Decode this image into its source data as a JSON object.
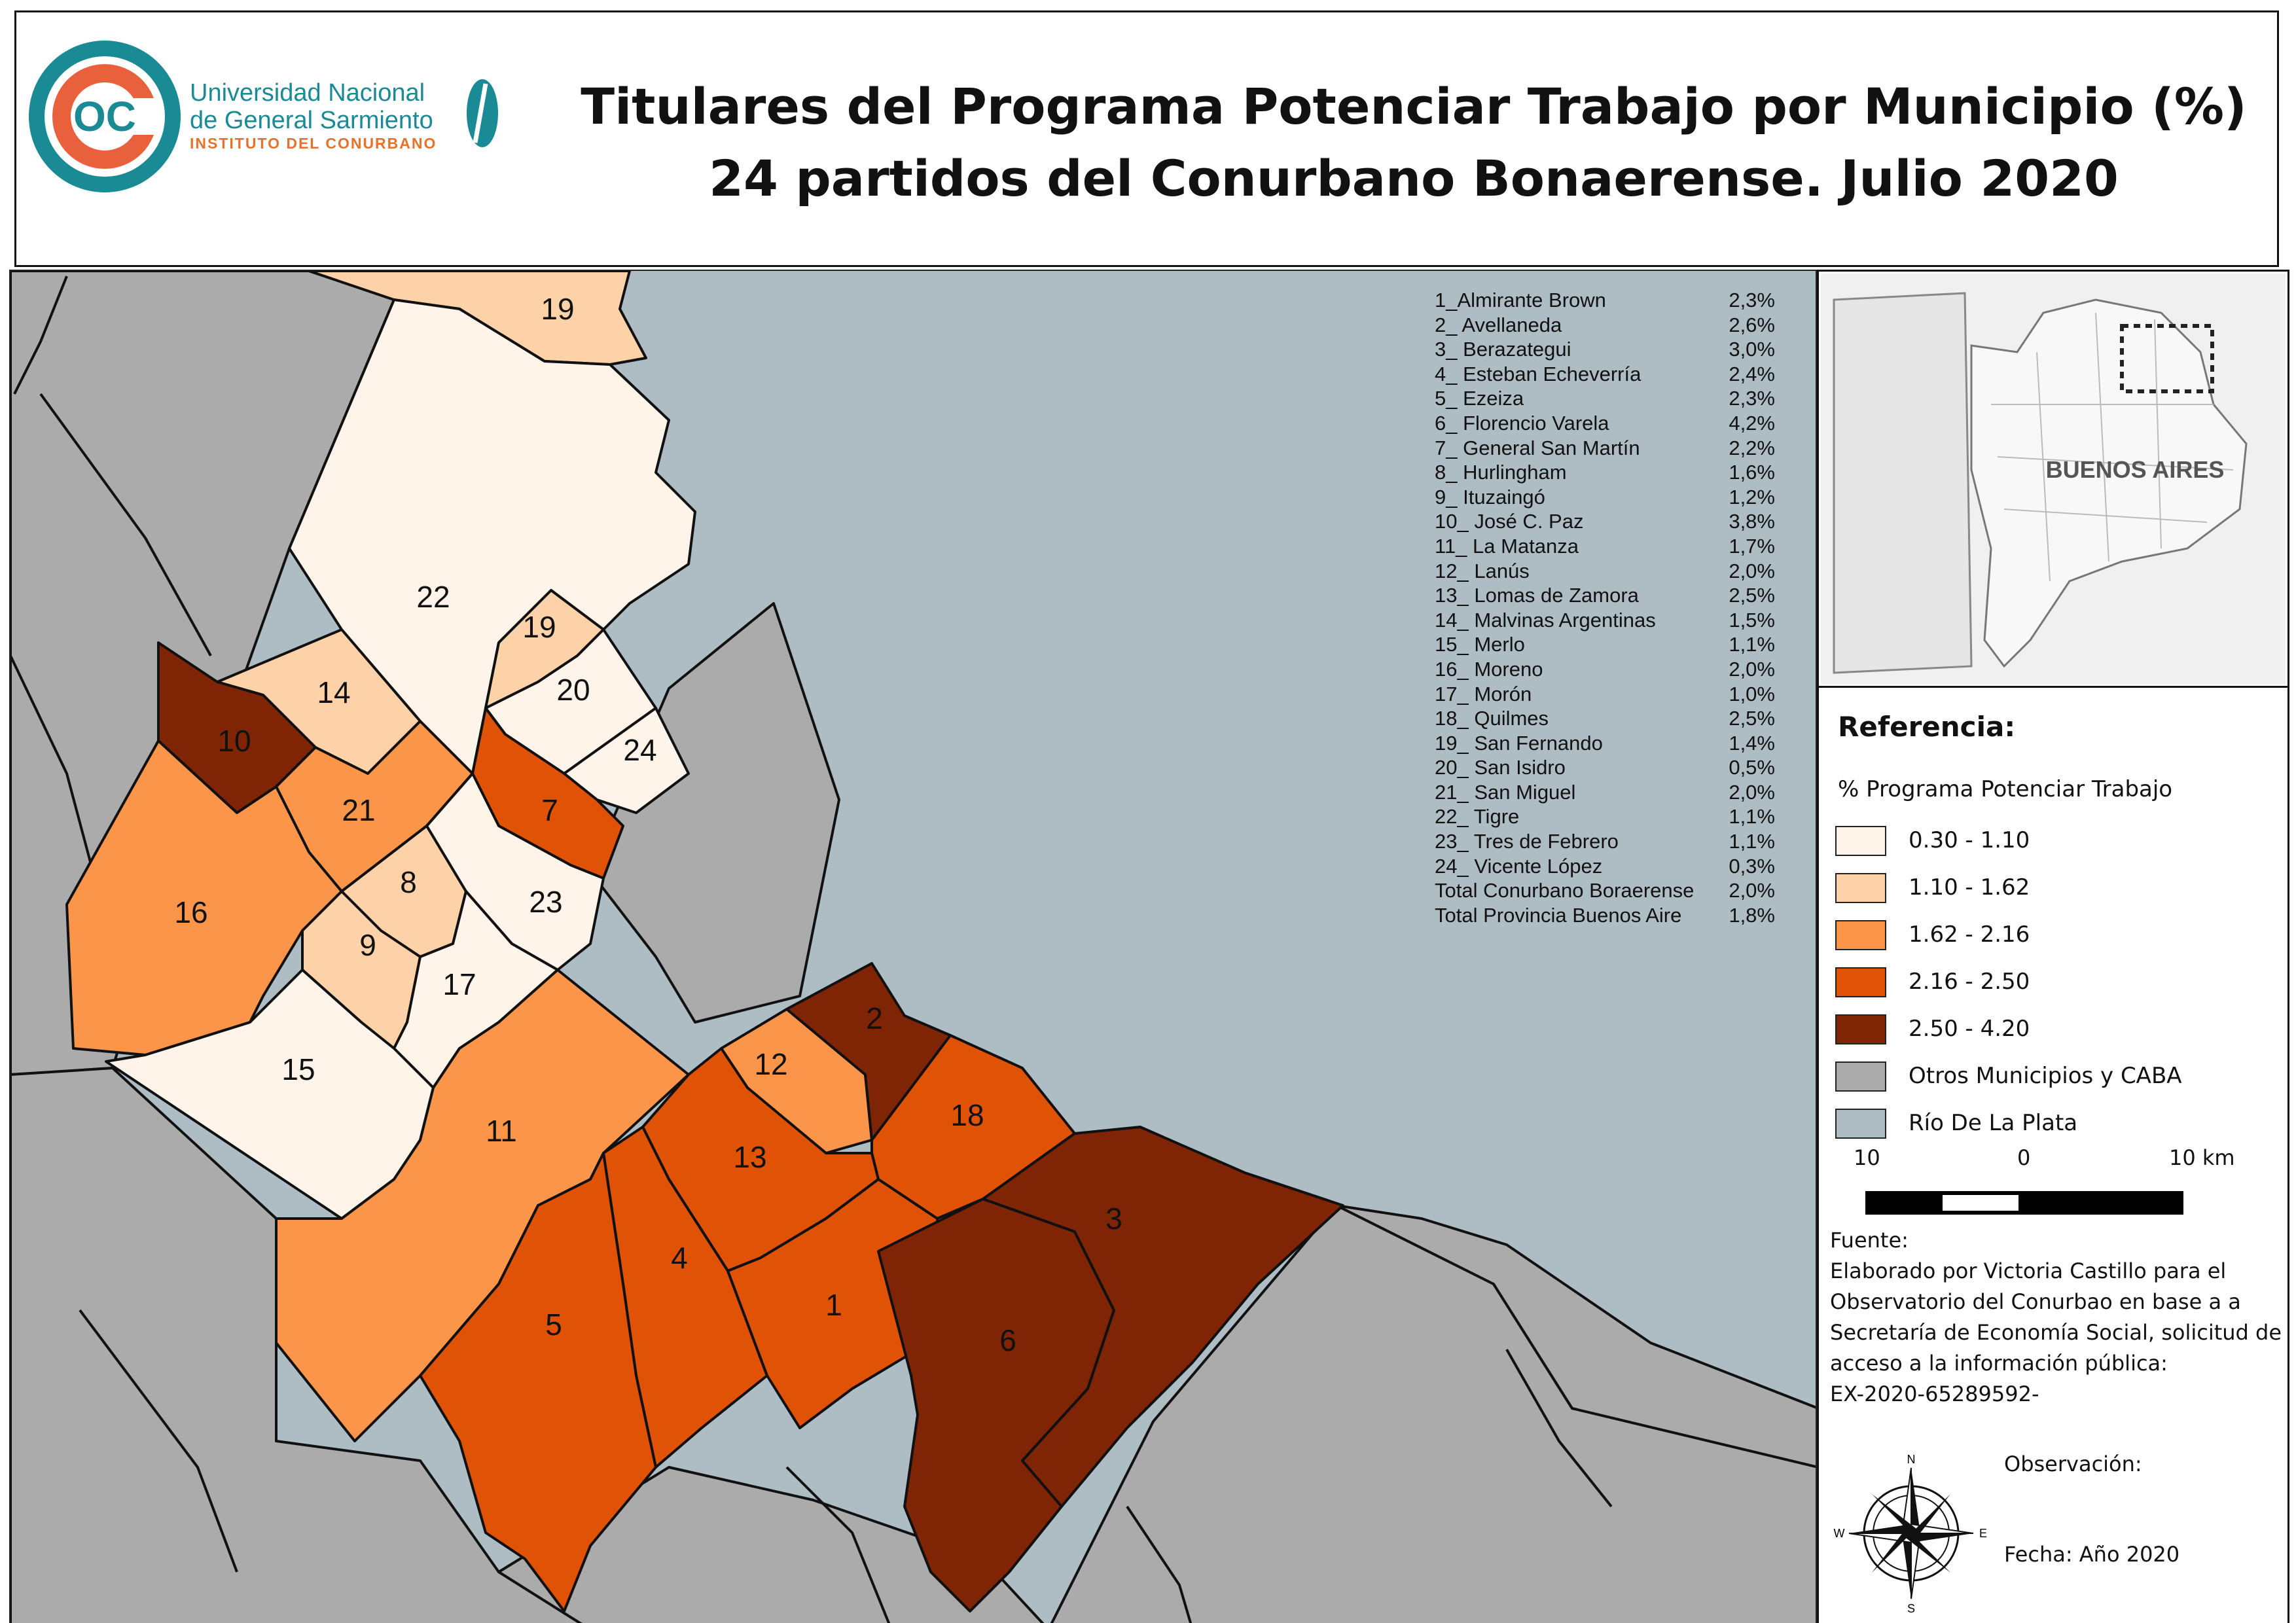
{
  "header": {
    "title_line1": "Titulares del Programa Potenciar Trabajo por Municipio (%)",
    "title_line2": "24 partidos del Conurbano Bonaerense. Julio 2020",
    "logo": {
      "monogram": "OC",
      "name_line1": "Universidad Nacional",
      "name_line2": "de General Sarmiento",
      "institute": "INSTITUTO DEL CONURBANO"
    }
  },
  "municipios": [
    {
      "name": "1_Almirante Brown",
      "value": "2,3%"
    },
    {
      "name": "2_ Avellaneda",
      "value": "2,6%"
    },
    {
      "name": "3_ Berazategui",
      "value": "3,0%"
    },
    {
      "name": "4_ Esteban Echeverría",
      "value": "2,4%"
    },
    {
      "name": "5_ Ezeiza",
      "value": "2,3%"
    },
    {
      "name": "6_ Florencio Varela",
      "value": "4,2%"
    },
    {
      "name": "7_ General San Martín",
      "value": "2,2%"
    },
    {
      "name": "8_ Hurlingham",
      "value": "1,6%"
    },
    {
      "name": "9_ Ituzaingó",
      "value": "1,2%"
    },
    {
      "name": "10_ José C. Paz",
      "value": "3,8%"
    },
    {
      "name": "11_ La Matanza",
      "value": "1,7%"
    },
    {
      "name": "12_ Lanús",
      "value": "2,0%"
    },
    {
      "name": "13_ Lomas de Zamora",
      "value": "2,5%"
    },
    {
      "name": "14_ Malvinas Argentinas",
      "value": "1,5%"
    },
    {
      "name": "15_ Merlo",
      "value": "1,1%"
    },
    {
      "name": "16_ Moreno",
      "value": "2,0%"
    },
    {
      "name": "17_ Morón",
      "value": "1,0%"
    },
    {
      "name": "18_ Quilmes",
      "value": "2,5%"
    },
    {
      "name": "19_ San Fernando",
      "value": "1,4%"
    },
    {
      "name": "20_ San Isidro",
      "value": "0,5%"
    },
    {
      "name": "21_ San Miguel",
      "value": "2,0%"
    },
    {
      "name": "22_ Tigre",
      "value": "1,1%"
    },
    {
      "name": "23_ Tres de Febrero",
      "value": "1,1%"
    },
    {
      "name": "24_ Vicente López",
      "value": "0,3%"
    },
    {
      "name": "Total Conurbano Boraerense",
      "value": "2,0%"
    },
    {
      "name": "Total Provincia Buenos Aire",
      "value": "1,8%"
    }
  ],
  "map_labels": {
    "m1": "1",
    "m2": "2",
    "m3": "3",
    "m4": "4",
    "m5": "5",
    "m6": "6",
    "m7": "7",
    "m8": "8",
    "m9": "9",
    "m10": "10",
    "m11": "11",
    "m12": "12",
    "m13": "13",
    "m14": "14",
    "m15": "15",
    "m16": "16",
    "m17": "17",
    "m18": "18",
    "m19a": "19",
    "m19b": "19",
    "m20": "20",
    "m21": "21",
    "m22": "22",
    "m23": "23",
    "m24": "24"
  },
  "inset": {
    "label": "BUENOS AIRES"
  },
  "legend": {
    "title": "Referencia:",
    "subtitle": "% Programa Potenciar Trabajo",
    "items": [
      {
        "label": "0.30 - 1.10",
        "color": "#fef4ea"
      },
      {
        "label": "1.10 - 1.62",
        "color": "#fdd2a8"
      },
      {
        "label": "1.62 - 2.16",
        "color": "#fb9549"
      },
      {
        "label": "2.16 - 2.50",
        "color": "#e05206"
      },
      {
        "label": "2.50 - 4.20",
        "color": "#7f2404"
      },
      {
        "label": "Otros Municipios y CABA",
        "color": "#ababab"
      },
      {
        "label": "Río De La Plata",
        "color": "#aebcc4"
      }
    ]
  },
  "scale": {
    "left": "10",
    "mid": "0",
    "right": "10 km"
  },
  "source": {
    "title": "Fuente:",
    "lines": [
      "Elaborado por Victoria Castillo para el",
      "Observatorio del Conurbao en base a a",
      "Secretaría de Economía Social, solicitud de",
      "acceso a la información pública:",
      "EX-2020-65289592-"
    ]
  },
  "observation": "Observación:",
  "date": "Fecha: Año 2020",
  "compass": {
    "n": "N",
    "s": "S",
    "e": "E",
    "w": "W"
  }
}
